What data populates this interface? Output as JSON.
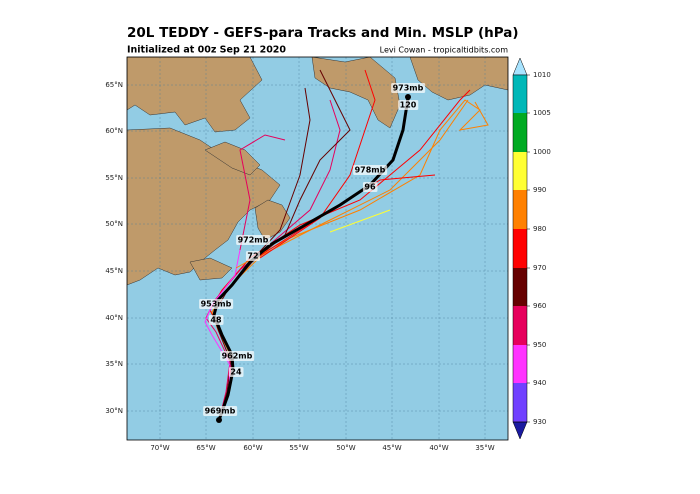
{
  "header": {
    "title": "20L TEDDY - GEFS-para Tracks and Min. MSLP (hPa)",
    "subtitle": "Initialized at 00z Sep 21 2020",
    "credit": "Levi Cowan - tropicaltidbits.com"
  },
  "map": {
    "lat_labels": [
      "65°N",
      "60°N",
      "55°N",
      "50°N",
      "45°N",
      "40°N",
      "35°N",
      "30°N"
    ],
    "lon_labels": [
      "70°W",
      "65°W",
      "60°W",
      "55°W",
      "50°W",
      "45°W",
      "40°W",
      "35°W"
    ],
    "annotations": [
      "973mb",
      "120",
      "978mb",
      "96",
      "972mb",
      "72",
      "953mb",
      "48",
      "962mb",
      "24",
      "969mb"
    ]
  },
  "colorbar": {
    "ticks": [
      "1010",
      "1005",
      "1000",
      "990",
      "980",
      "970",
      "960",
      "950",
      "940",
      "930"
    ]
  }
}
